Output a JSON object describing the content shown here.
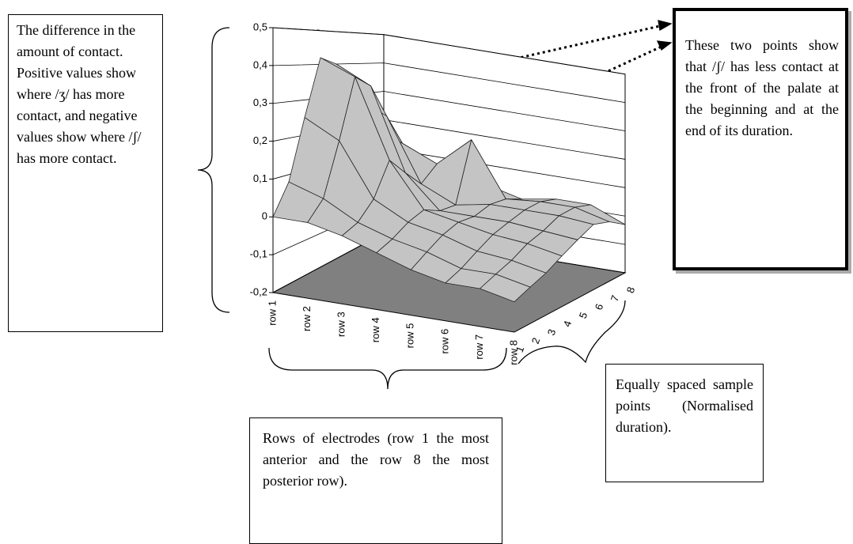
{
  "chart_data": {
    "type": "surface",
    "series": [
      {
        "name": "row 1",
        "values": [
          0.0,
          0.08,
          0.25,
          0.42,
          0.4,
          0.3,
          0.2,
          0.1
        ]
      },
      {
        "name": "row 2",
        "values": [
          0.0,
          0.05,
          0.2,
          0.38,
          0.35,
          0.25,
          0.15,
          0.08
        ]
      },
      {
        "name": "row 3",
        "values": [
          -0.02,
          0.0,
          0.05,
          0.15,
          0.1,
          0.05,
          0.1,
          0.05
        ]
      },
      {
        "name": "row 4",
        "values": [
          -0.05,
          -0.03,
          0.0,
          0.02,
          0.0,
          0.0,
          0.2,
          0.03
        ]
      },
      {
        "name": "row 5",
        "values": [
          -0.08,
          -0.05,
          -0.02,
          0.0,
          0.0,
          0.02,
          0.02,
          0.0
        ]
      },
      {
        "name": "row 6",
        "values": [
          -0.1,
          -0.08,
          -0.05,
          -0.02,
          0.0,
          0.02,
          0.03,
          0.02
        ]
      },
      {
        "name": "row 7",
        "values": [
          -0.1,
          -0.08,
          -0.06,
          -0.03,
          -0.01,
          0.02,
          0.03,
          0.02
        ]
      },
      {
        "name": "row 8",
        "values": [
          -0.12,
          -0.1,
          -0.08,
          -0.05,
          -0.02,
          0.01,
          0.0,
          -0.03
        ]
      }
    ],
    "sample_points": [
      "1",
      "2",
      "3",
      "4",
      "5",
      "6",
      "7",
      "8"
    ],
    "zlim": [
      -0.2,
      0.5
    ],
    "zticks": [
      {
        "value": -0.2,
        "label": "-0,2"
      },
      {
        "value": -0.1,
        "label": "-0,1"
      },
      0,
      {
        "value": 0.1,
        "label": "0,1"
      },
      {
        "value": 0.2,
        "label": "0,2"
      },
      {
        "value": 0.3,
        "label": "0,3"
      },
      {
        "value": 0.4,
        "label": "0,4"
      },
      {
        "value": 0.5,
        "label": "0,5"
      }
    ],
    "color": "#c4c4c4",
    "floor_color": "#808080",
    "grid": true
  },
  "annotations": {
    "left": "The difference in the amount of contact. Positive values show where /ʒ/ has more contact, and negative values show where /ʃ/ has more contact.",
    "right": "These two points show that /ʃ/ has less contact at the front of the palate at the beginning and at the end of its duration.",
    "bottom": "Rows of electrodes (row 1 the most anterior and the row 8 the most posterior row).",
    "bottom_right": "Equally spaced sample points (Normalised duration)."
  }
}
